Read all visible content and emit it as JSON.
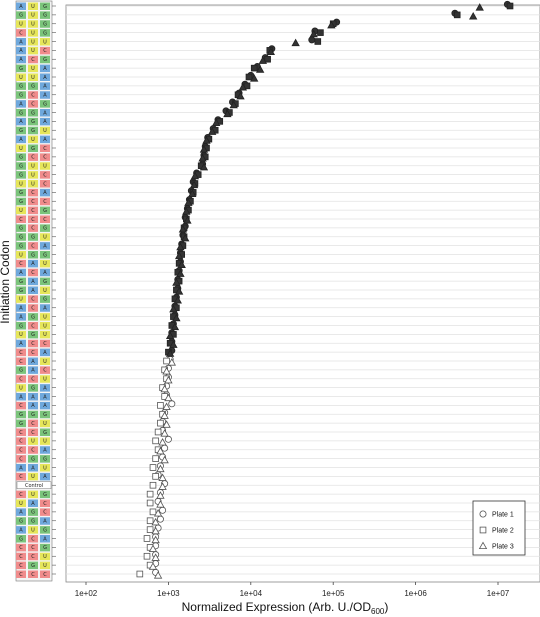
{
  "chart_data": {
    "type": "scatter",
    "title": "",
    "xlabel": "Normalized Expression (Arb. U./OD",
    "xlabel_sub": "600",
    "xlabel_close": ")",
    "ylabel": "Initiation Codon",
    "x_scale": "log",
    "xlim": [
      500,
      20000000
    ],
    "x_ticks": [
      "1e+02",
      "1e+03",
      "1e+04",
      "1e+05",
      "1e+06",
      "1e+07"
    ],
    "grid": true,
    "legend_position": "bottom-right",
    "nucleotide_colors": {
      "A": "#6fa8dc",
      "U": "#e6e65a",
      "G": "#7bc47b",
      "C": "#f08c8c"
    },
    "control_label": "Control",
    "codons": [
      "AUG",
      "GUG",
      "UUG",
      "CUG",
      "AUU",
      "AUC",
      "ACG",
      "GUA",
      "UUA",
      "GGA",
      "GCA",
      "ACG",
      "GGA",
      "AGA",
      "GGU",
      "AUA",
      "UGC",
      "GCC",
      "GUU",
      "GUC",
      "UUC",
      "GCA",
      "GCC",
      "UCG",
      "CCC",
      "GCG",
      "GGU",
      "GCA",
      "UGG",
      "CAU",
      "ACA",
      "GAG",
      "GAU",
      "UCG",
      "ACA",
      "AGU",
      "GCU",
      "UGU",
      "ACC",
      "CCA",
      "CAU",
      "GAC",
      "CCU",
      "UGA",
      "AAA",
      "CAA",
      "GGG",
      "GCU",
      "CCG",
      "CUU",
      "CCA",
      "CGG",
      "AAU",
      "CUA",
      "Control",
      "CUG",
      "UAC",
      "AGC",
      "GGA",
      "AUG",
      "GCA",
      "CCG",
      "CCU",
      "CGU",
      "CCC"
    ],
    "series": [
      {
        "name": "Plate 1",
        "marker": "circle",
        "values": [
          13000000,
          3000000,
          110000,
          60000,
          55000,
          18000,
          15000,
          12000,
          10000,
          8500,
          7200,
          6000,
          5000,
          4000,
          3500,
          3000,
          2800,
          2700,
          2600,
          2200,
          2000,
          1900,
          1800,
          1700,
          1600,
          1600,
          1500,
          1450,
          1400,
          1400,
          1350,
          1300,
          1300,
          1250,
          1200,
          1200,
          1150,
          1100,
          1100,
          1100,
          1050,
          1000,
          1000,
          950,
          950,
          1100,
          900,
          850,
          850,
          1000,
          900,
          850,
          800,
          750,
          900,
          800,
          750,
          850,
          800,
          750,
          700,
          700,
          700,
          700,
          700
        ]
      },
      {
        "name": "Plate 2",
        "marker": "square",
        "values": [
          14000000,
          3200000,
          100000,
          70000,
          65000,
          17000,
          16000,
          11000,
          9500,
          9000,
          7000,
          6500,
          5500,
          4200,
          3700,
          3100,
          2900,
          2800,
          2500,
          2300,
          2100,
          2000,
          1850,
          1750,
          1650,
          1550,
          1550,
          1500,
          1450,
          1350,
          1300,
          1350,
          1250,
          1200,
          1250,
          1150,
          1100,
          1150,
          1050,
          1000,
          950,
          900,
          950,
          850,
          900,
          800,
          850,
          800,
          750,
          700,
          750,
          700,
          650,
          700,
          650,
          600,
          600,
          650,
          600,
          600,
          550,
          600,
          550,
          600,
          450
        ]
      },
      {
        "name": "Plate 3",
        "marker": "triangle",
        "values": [
          6000000,
          5000000,
          95000,
          58000,
          35000,
          17500,
          14000,
          13000,
          11000,
          8000,
          7500,
          6200,
          5200,
          3800,
          3400,
          2900,
          2700,
          2600,
          2700,
          2100,
          2050,
          1950,
          1750,
          1650,
          1700,
          1500,
          1600,
          1400,
          1350,
          1450,
          1400,
          1250,
          1350,
          1300,
          1150,
          1250,
          1200,
          1050,
          1150,
          1050,
          1100,
          950,
          1000,
          900,
          1000,
          950,
          900,
          950,
          900,
          850,
          800,
          900,
          800,
          850,
          850,
          800,
          800,
          750,
          700,
          700,
          700,
          650,
          700,
          650,
          750
        ]
      }
    ]
  }
}
